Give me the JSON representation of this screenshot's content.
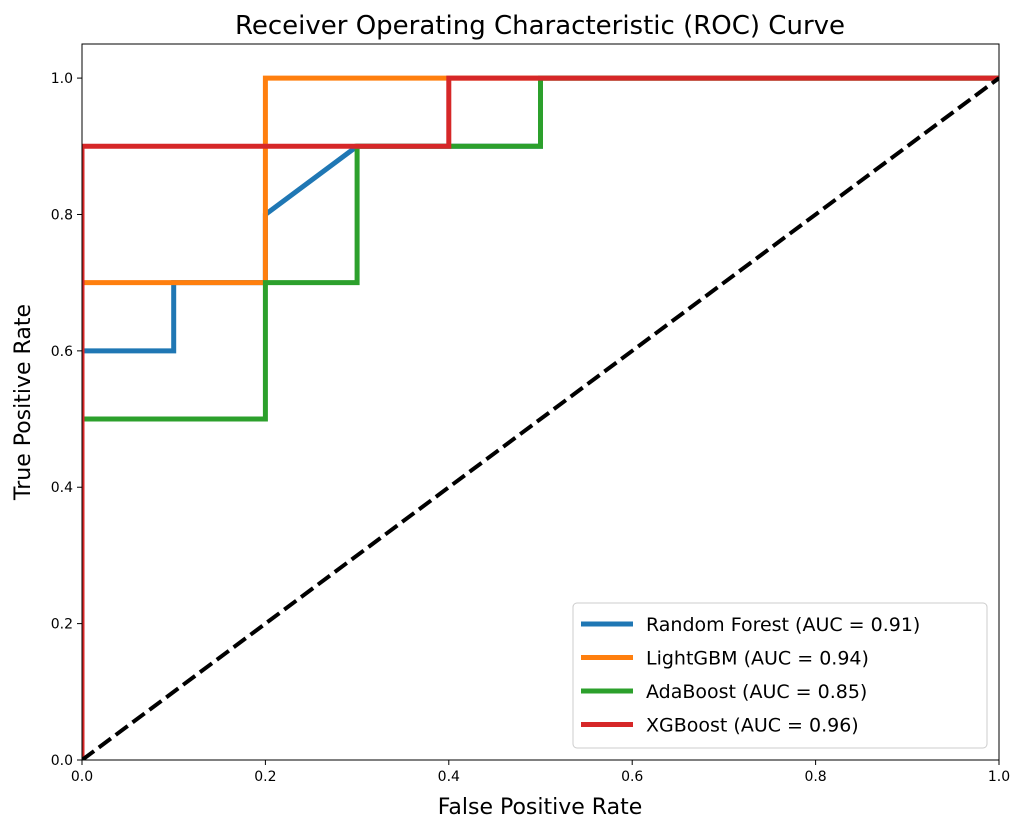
{
  "chart_data": {
    "type": "line",
    "title": "Receiver Operating Characteristic (ROC) Curve",
    "xlabel": "False Positive Rate",
    "ylabel": "True Positive Rate",
    "xlim": [
      0,
      1
    ],
    "ylim": [
      0,
      1.05
    ],
    "xticks": [
      0.0,
      0.2,
      0.4,
      0.6,
      0.8,
      1.0
    ],
    "yticks": [
      0.0,
      0.2,
      0.4,
      0.6,
      0.8,
      1.0
    ],
    "xtick_labels": [
      "0.0",
      "0.2",
      "0.4",
      "0.6",
      "0.8",
      "1.0"
    ],
    "ytick_labels": [
      "0.0",
      "0.2",
      "0.4",
      "0.6",
      "0.8",
      "1.0"
    ],
    "grid": false,
    "legend_position": "lower-right",
    "series": [
      {
        "name": "Random Forest (AUC = 0.91)",
        "color": "#1f77b4",
        "x": [
          0.0,
          0.0,
          0.1,
          0.1,
          0.2,
          0.2,
          0.3,
          0.3,
          0.5,
          0.5,
          1.0
        ],
        "y": [
          0.0,
          0.6,
          0.6,
          0.7,
          0.7,
          0.8,
          0.9,
          0.9,
          0.9,
          1.0,
          1.0
        ]
      },
      {
        "name": "LightGBM (AUC = 0.94)",
        "color": "#ff7f0e",
        "x": [
          0.0,
          0.0,
          0.2,
          0.2,
          1.0
        ],
        "y": [
          0.0,
          0.7,
          0.7,
          1.0,
          1.0
        ]
      },
      {
        "name": "AdaBoost (AUC = 0.85)",
        "color": "#2ca02c",
        "x": [
          0.0,
          0.0,
          0.2,
          0.2,
          0.3,
          0.3,
          0.5,
          0.5,
          1.0
        ],
        "y": [
          0.0,
          0.5,
          0.5,
          0.7,
          0.7,
          0.9,
          0.9,
          1.0,
          1.0
        ]
      },
      {
        "name": "XGBoost (AUC = 0.96)",
        "color": "#d62728",
        "x": [
          0.0,
          0.0,
          0.4,
          0.4,
          1.0
        ],
        "y": [
          0.0,
          0.9,
          0.9,
          1.0,
          1.0
        ]
      }
    ],
    "reference_line": {
      "x": [
        0.0,
        1.0
      ],
      "y": [
        0.0,
        1.0
      ],
      "color": "#000000",
      "style": "dashed"
    }
  }
}
